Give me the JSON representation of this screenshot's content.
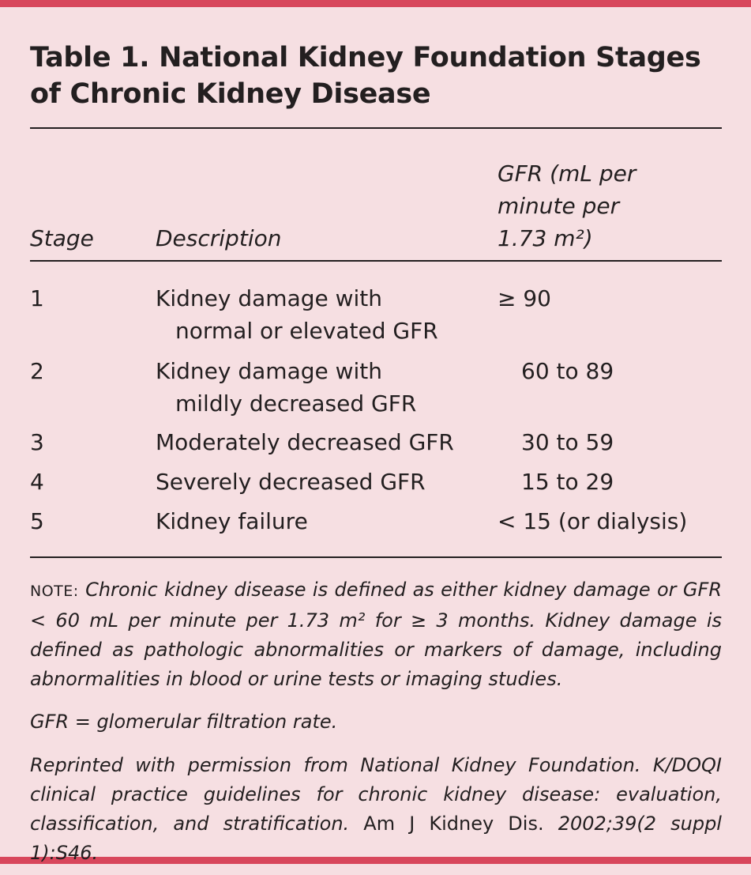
{
  "title": "Table 1. National Kidney Foundation Stages of Chronic Kidney Disease",
  "table": {
    "headers": [
      "Stage",
      "Description",
      "GFR (mL per minute per 1.73 m²)"
    ],
    "rows": [
      [
        "1",
        [
          "Kidney damage with",
          "normal or elevated GFR"
        ],
        "≥ 90"
      ],
      [
        "2",
        [
          "Kidney damage with",
          "mildly decreased GFR"
        ],
        "60 to 89"
      ],
      [
        "3",
        [
          "Moderately decreased GFR"
        ],
        "30 to 59"
      ],
      [
        "4",
        [
          "Severely decreased GFR"
        ],
        "15 to 29"
      ],
      [
        "5",
        [
          "Kidney failure"
        ],
        "< 15 (or dialysis)"
      ]
    ]
  },
  "notes": {
    "note_label": "NOTE:",
    "note_text": "Chronic kidney disease is defined as either kidney damage or GFR < 60 mL per minute per 1.73 m² for ≥ 3 months. Kidney damage is defined as pathologic abnormalities or markers of damage, including abnormalities in blood or urine tests or imaging studies.",
    "abbreviation": "GFR = glomerular filtration rate.",
    "source": [
      "Reprinted with permission from National Kidney Foundation. K/DOQI clinical practice guidelines for chronic kidney disease: evaluation, classification, and stratification.",
      "Am J Kidney Dis.",
      "2002;39(2 suppl 1):S46."
    ]
  }
}
